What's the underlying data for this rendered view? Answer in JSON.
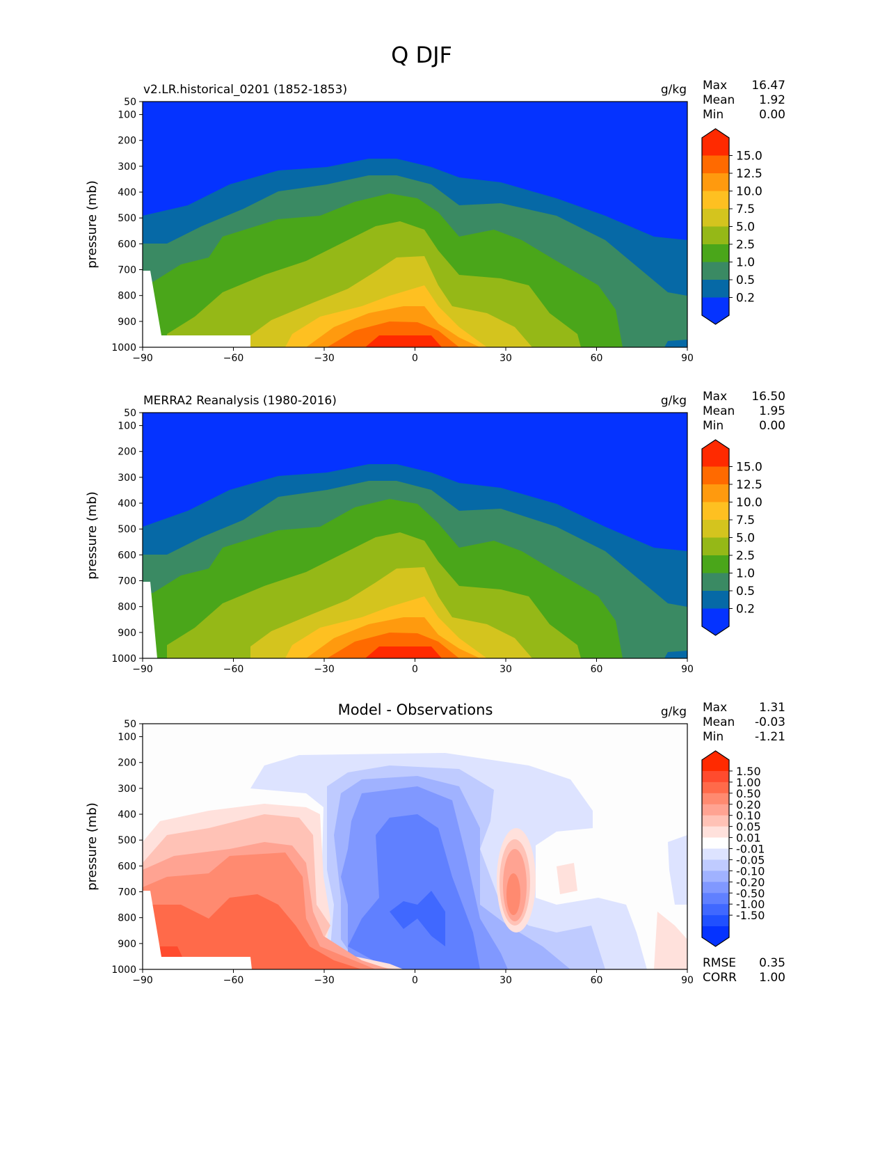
{
  "figure_title": "Q DJF",
  "chart_data": [
    {
      "type": "heatmap",
      "title": "v2.LR.historical_0201 (1852-1853)",
      "units": "g/kg",
      "ylabel": "pressure (mb)",
      "xlabel": "",
      "xlim": [
        -90,
        90
      ],
      "ylim": [
        1000,
        50
      ],
      "xticks": [
        "−90",
        "−60",
        "−30",
        "0",
        "30",
        "60",
        "90"
      ],
      "xtick_values": [
        -90,
        -60,
        -30,
        0,
        30,
        60,
        90
      ],
      "yticks": [
        "50",
        "100",
        "200",
        "300",
        "400",
        "500",
        "600",
        "700",
        "800",
        "900",
        "1000"
      ],
      "ytick_values": [
        50,
        100,
        200,
        300,
        400,
        500,
        600,
        700,
        800,
        900,
        1000
      ],
      "stats": {
        "labels": [
          "Max",
          "Mean",
          "Min"
        ],
        "values": [
          "16.47",
          "1.92",
          "0.00"
        ]
      },
      "colorbar": {
        "tick_labels": [
          "15.0",
          "12.5",
          "10.0",
          "7.5",
          "5.0",
          "2.5",
          "1.0",
          "0.5",
          "0.2"
        ],
        "levels": [
          15.0,
          12.5,
          10.0,
          7.5,
          5.0,
          2.5,
          1.0,
          0.5,
          0.2
        ],
        "colors": [
          "#ff2a00",
          "#ff6a00",
          "#ff9a0e",
          "#fec021",
          "#d4c41e",
          "#95b817",
          "#4aa61a",
          "#3a8a63",
          "#0669a6",
          "#0533ff"
        ]
      }
    },
    {
      "type": "heatmap",
      "title": "MERRA2 Reanalysis (1980-2016)",
      "units": "g/kg",
      "ylabel": "pressure (mb)",
      "xlabel": "",
      "xlim": [
        -90,
        90
      ],
      "ylim": [
        1000,
        50
      ],
      "xticks": [
        "−90",
        "−60",
        "−30",
        "0",
        "30",
        "60",
        "90"
      ],
      "xtick_values": [
        -90,
        -60,
        -30,
        0,
        30,
        60,
        90
      ],
      "yticks": [
        "50",
        "100",
        "200",
        "300",
        "400",
        "500",
        "600",
        "700",
        "800",
        "900",
        "1000"
      ],
      "ytick_values": [
        50,
        100,
        200,
        300,
        400,
        500,
        600,
        700,
        800,
        900,
        1000
      ],
      "stats": {
        "labels": [
          "Max",
          "Mean",
          "Min"
        ],
        "values": [
          "16.50",
          "1.95",
          "0.00"
        ]
      },
      "colorbar": {
        "tick_labels": [
          "15.0",
          "12.5",
          "10.0",
          "7.5",
          "5.0",
          "2.5",
          "1.0",
          "0.5",
          "0.2"
        ],
        "levels": [
          15.0,
          12.5,
          10.0,
          7.5,
          5.0,
          2.5,
          1.0,
          0.5,
          0.2
        ],
        "colors": [
          "#ff2a00",
          "#ff6a00",
          "#ff9a0e",
          "#fec021",
          "#d4c41e",
          "#95b817",
          "#4aa61a",
          "#3a8a63",
          "#0669a6",
          "#0533ff"
        ]
      }
    },
    {
      "type": "heatmap",
      "title": "Model - Observations",
      "units": "g/kg",
      "ylabel": "pressure (mb)",
      "xlabel": "",
      "xlim": [
        -90,
        90
      ],
      "ylim": [
        1000,
        50
      ],
      "xticks": [
        "−90",
        "−60",
        "−30",
        "0",
        "30",
        "60",
        "90"
      ],
      "xtick_values": [
        -90,
        -60,
        -30,
        0,
        30,
        60,
        90
      ],
      "yticks": [
        "50",
        "100",
        "200",
        "300",
        "400",
        "500",
        "600",
        "700",
        "800",
        "900",
        "1000"
      ],
      "ytick_values": [
        50,
        100,
        200,
        300,
        400,
        500,
        600,
        700,
        800,
        900,
        1000
      ],
      "stats": {
        "labels": [
          "Max",
          "Mean",
          "Min"
        ],
        "values": [
          "1.31",
          "-0.03",
          "-1.21"
        ]
      },
      "metrics": {
        "labels": [
          "RMSE",
          "CORR"
        ],
        "values": [
          "0.35",
          "1.00"
        ]
      },
      "colorbar": {
        "tick_labels": [
          "1.50",
          "1.00",
          "0.50",
          "0.20",
          "0.10",
          "0.05",
          "0.01",
          "-0.01",
          "-0.05",
          "-0.10",
          "-0.20",
          "-0.50",
          "-1.00",
          "-1.50"
        ],
        "levels": [
          1.5,
          1.0,
          0.5,
          0.2,
          0.1,
          0.05,
          0.01,
          -0.01,
          -0.05,
          -0.1,
          -0.2,
          -0.5,
          -1.0,
          -1.5
        ],
        "colors": [
          "#ff2a00",
          "#ff4b2e",
          "#ff6a4a",
          "#ff8a70",
          "#ffa392",
          "#ffc2b6",
          "#ffe1dc",
          "#ffffff",
          "#dde3ff",
          "#bfcbff",
          "#a0b2ff",
          "#8098ff",
          "#6080ff",
          "#4068ff",
          "#2050ff",
          "#0533ff"
        ]
      }
    }
  ]
}
